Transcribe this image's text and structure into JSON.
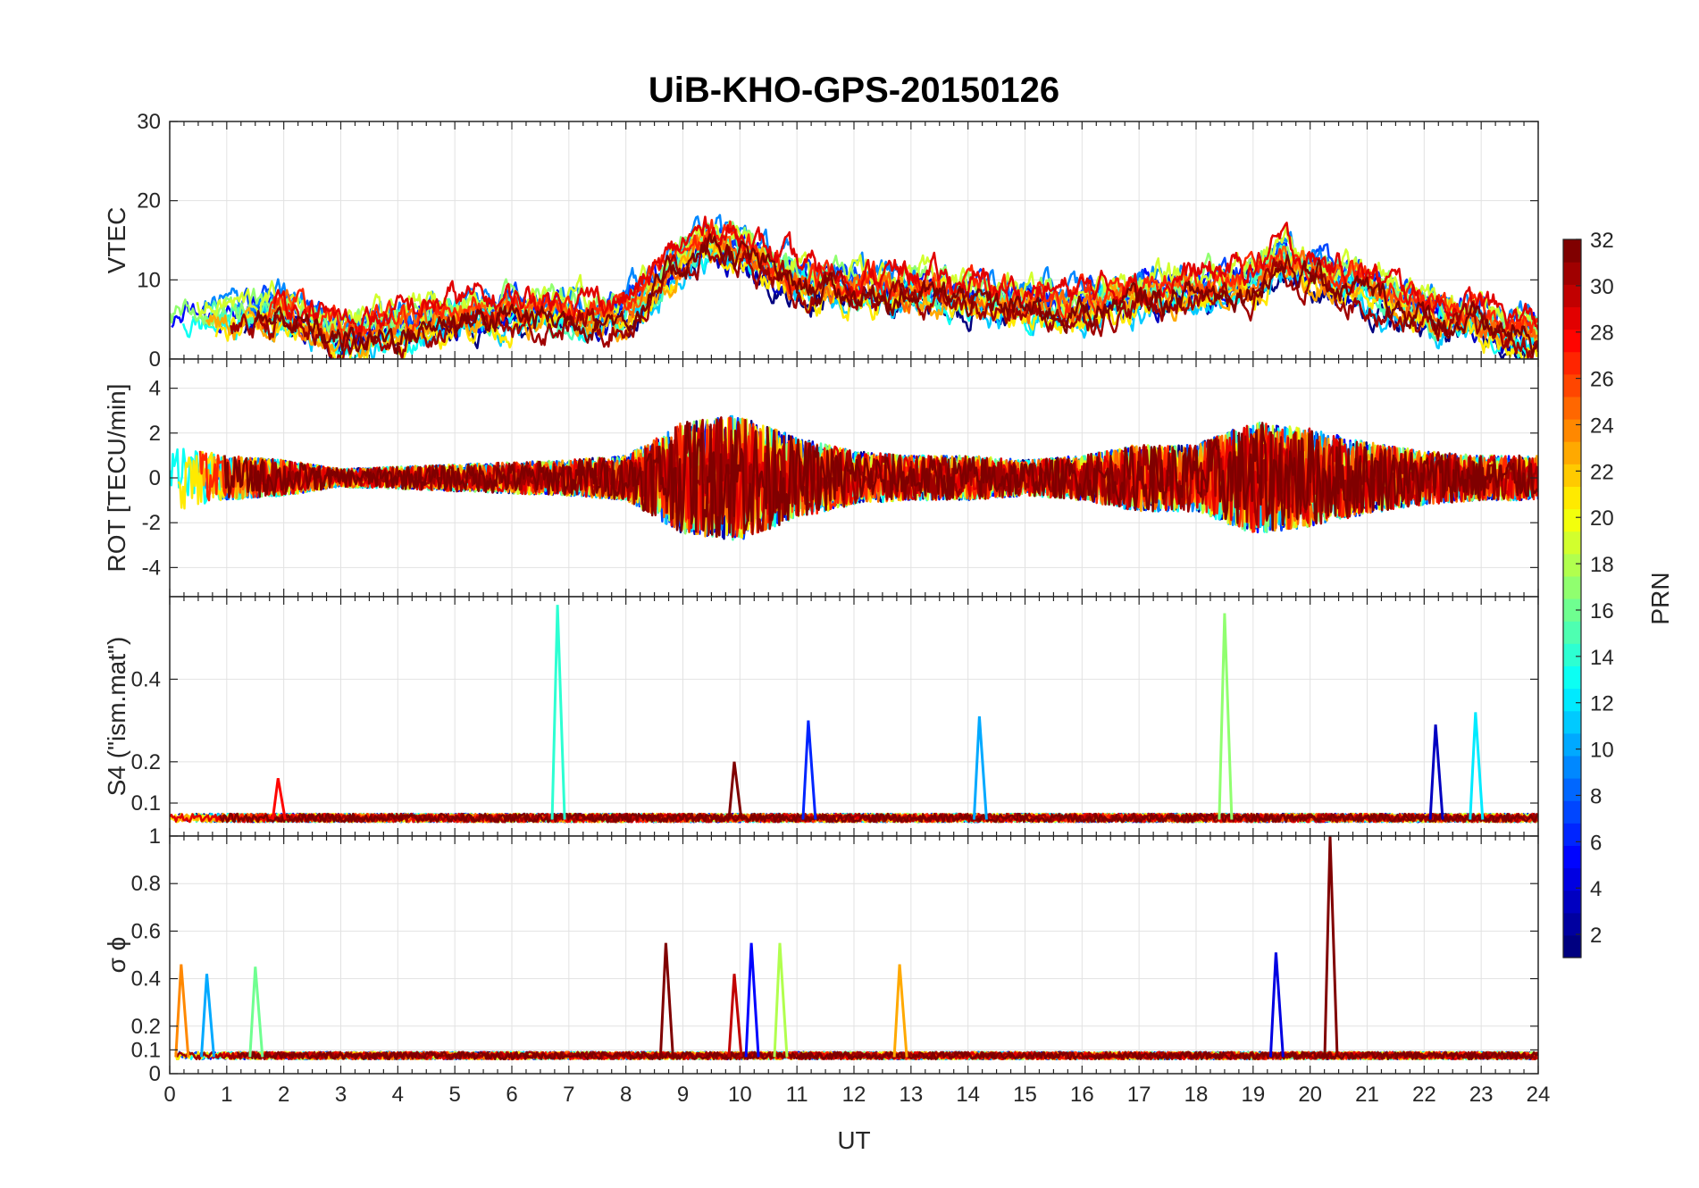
{
  "chart_data": {
    "type": "line",
    "title": "UiB-KHO-GPS-20150126",
    "xlabel": "UT",
    "xlim": [
      0,
      24
    ],
    "x_ticks": [
      "0",
      "1",
      "2",
      "3",
      "4",
      "5",
      "6",
      "7",
      "8",
      "9",
      "10",
      "11",
      "12",
      "13",
      "14",
      "15",
      "16",
      "17",
      "18",
      "19",
      "20",
      "21",
      "22",
      "23",
      "24"
    ],
    "grid": true,
    "colormap": "jet",
    "colorbar": {
      "label": "PRN",
      "range": [
        1,
        32
      ],
      "ticks": [
        "2",
        "4",
        "6",
        "8",
        "10",
        "12",
        "14",
        "16",
        "18",
        "20",
        "22",
        "24",
        "26",
        "28",
        "30",
        "32"
      ],
      "placement": "right"
    },
    "panels": [
      {
        "id": "vtec",
        "ylabel": "VTEC",
        "ylim": [
          0,
          30
        ],
        "yticks": [
          "0",
          "10",
          "20",
          "30"
        ],
        "ytick_values": [
          0,
          10,
          20,
          30
        ],
        "base": [
          [
            0,
            5
          ],
          [
            1,
            5
          ],
          [
            2,
            6
          ],
          [
            3,
            3
          ],
          [
            4,
            4
          ],
          [
            5,
            6
          ],
          [
            6,
            6
          ],
          [
            7,
            6
          ],
          [
            8,
            6
          ],
          [
            8.5,
            9
          ],
          [
            9,
            13
          ],
          [
            9.5,
            15
          ],
          [
            10,
            14
          ],
          [
            10.5,
            12
          ],
          [
            11,
            10
          ],
          [
            12,
            9
          ],
          [
            13,
            9
          ],
          [
            14,
            8
          ],
          [
            15,
            7
          ],
          [
            16,
            7
          ],
          [
            17,
            8
          ],
          [
            18,
            9
          ],
          [
            19,
            10
          ],
          [
            19.5,
            13
          ],
          [
            20,
            11
          ],
          [
            20.5,
            10
          ],
          [
            21,
            9
          ],
          [
            22,
            6
          ],
          [
            23,
            5
          ],
          [
            24,
            3
          ]
        ],
        "noise": 1.2
      },
      {
        "id": "rot",
        "ylabel": "ROT [TECU/min]",
        "ylim": [
          -5.3,
          5.3
        ],
        "yticks": [
          "-4",
          "-2",
          "0",
          "2",
          "4"
        ],
        "ytick_values": [
          -4,
          -2,
          0,
          2,
          4
        ],
        "amplitude": [
          [
            0,
            1.5
          ],
          [
            1,
            1.0
          ],
          [
            2,
            0.8
          ],
          [
            3,
            0.4
          ],
          [
            4,
            0.5
          ],
          [
            5,
            0.6
          ],
          [
            6,
            0.7
          ],
          [
            7,
            0.8
          ],
          [
            8,
            1.0
          ],
          [
            9,
            2.5
          ],
          [
            10,
            2.8
          ],
          [
            11,
            1.8
          ],
          [
            12,
            1.2
          ],
          [
            13,
            1.0
          ],
          [
            14,
            1.0
          ],
          [
            15,
            0.8
          ],
          [
            16,
            1.0
          ],
          [
            17,
            1.5
          ],
          [
            18,
            1.5
          ],
          [
            19,
            2.5
          ],
          [
            20,
            2.2
          ],
          [
            21,
            1.6
          ],
          [
            22,
            1.2
          ],
          [
            23,
            1.0
          ],
          [
            24,
            1.0
          ]
        ]
      },
      {
        "id": "s4",
        "ylabel": "S4 (\"ism.mat\")",
        "ylim": [
          0.02,
          0.6
        ],
        "yticks": [
          "0.1",
          "0.2",
          "0.4"
        ],
        "ytick_values": [
          0.1,
          0.2,
          0.4
        ],
        "baseline": 0.06,
        "noise": 0.02,
        "spikes": [
          {
            "x": 6.8,
            "y": 0.58,
            "prn": 14
          },
          {
            "x": 18.5,
            "y": 0.56,
            "prn": 17
          },
          {
            "x": 11.2,
            "y": 0.3,
            "prn": 6
          },
          {
            "x": 14.2,
            "y": 0.31,
            "prn": 10
          },
          {
            "x": 22.2,
            "y": 0.29,
            "prn": 3
          },
          {
            "x": 22.9,
            "y": 0.32,
            "prn": 12
          },
          {
            "x": 1.9,
            "y": 0.16,
            "prn": 28
          },
          {
            "x": 9.9,
            "y": 0.2,
            "prn": 32
          }
        ]
      },
      {
        "id": "sigma",
        "ylabel": "σ ϕ",
        "ylim": [
          0,
          1
        ],
        "yticks": [
          "0",
          "0.1",
          "0.2",
          "0.4",
          "0.6",
          "0.8",
          "1"
        ],
        "ytick_values": [
          0,
          0.1,
          0.2,
          0.4,
          0.6,
          0.8,
          1
        ],
        "baseline": 0.07,
        "noise": 0.03,
        "spikes": [
          {
            "x": 20.35,
            "y": 1.0,
            "prn": 32
          },
          {
            "x": 8.7,
            "y": 0.55,
            "prn": 32
          },
          {
            "x": 10.2,
            "y": 0.55,
            "prn": 5
          },
          {
            "x": 10.7,
            "y": 0.55,
            "prn": 18
          },
          {
            "x": 0.2,
            "y": 0.46,
            "prn": 24
          },
          {
            "x": 1.5,
            "y": 0.45,
            "prn": 16
          },
          {
            "x": 0.65,
            "y": 0.42,
            "prn": 10
          },
          {
            "x": 19.4,
            "y": 0.51,
            "prn": 4
          },
          {
            "x": 12.8,
            "y": 0.46,
            "prn": 23
          },
          {
            "x": 9.9,
            "y": 0.42,
            "prn": 30
          }
        ]
      }
    ],
    "series_prns": [
      1,
      3,
      5,
      7,
      9,
      11,
      13,
      15,
      17,
      19,
      21,
      23,
      25,
      27,
      29,
      31,
      32
    ]
  }
}
